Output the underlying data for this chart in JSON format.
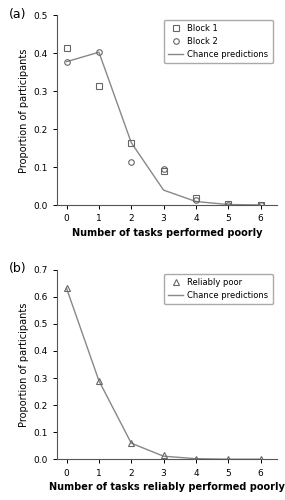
{
  "panel_a": {
    "x": [
      0,
      1,
      2,
      3,
      4,
      5,
      6
    ],
    "block1_y": [
      0.415,
      0.315,
      0.165,
      0.09,
      0.018,
      0.003,
      0.001
    ],
    "block2_y": [
      0.378,
      0.403,
      0.113,
      0.095,
      0.015,
      0.002,
      0.001
    ],
    "chance_y": [
      0.378,
      0.403,
      0.165,
      0.04,
      0.01,
      0.002,
      0.001
    ],
    "ylim": [
      0,
      0.5
    ],
    "yticks": [
      0.0,
      0.1,
      0.2,
      0.3,
      0.4,
      0.5
    ],
    "xticks": [
      0,
      1,
      2,
      3,
      4,
      5,
      6
    ],
    "xlabel": "Number of tasks performed poorly",
    "ylabel": "Proportion of participants",
    "label_b1": "Block 1",
    "label_b2": "Block 2",
    "label_chance": "Chance predictions",
    "panel_label": "(a)"
  },
  "panel_b": {
    "x": [
      0,
      1,
      2,
      3,
      4,
      5,
      6
    ],
    "reliably_poor_y": [
      0.63,
      0.29,
      0.06,
      0.018,
      0.003,
      0.001,
      0.001
    ],
    "chance_y": [
      0.63,
      0.29,
      0.06,
      0.012,
      0.003,
      0.001,
      0.001
    ],
    "ylim": [
      0,
      0.7
    ],
    "yticks": [
      0.0,
      0.1,
      0.2,
      0.3,
      0.4,
      0.5,
      0.6,
      0.7
    ],
    "xticks": [
      0,
      1,
      2,
      3,
      4,
      5,
      6
    ],
    "xlabel": "Number of tasks reliably performed poorly",
    "ylabel": "Proportion of participants",
    "label_reliably": "Reliably poor",
    "label_chance": "Chance predictions",
    "panel_label": "(b)"
  },
  "line_color": "#888888",
  "marker_color": "#666666",
  "bg_color": "#ffffff",
  "fontsize_labels": 7,
  "fontsize_ticks": 6.5,
  "fontsize_legend": 6,
  "fontsize_panel": 9
}
